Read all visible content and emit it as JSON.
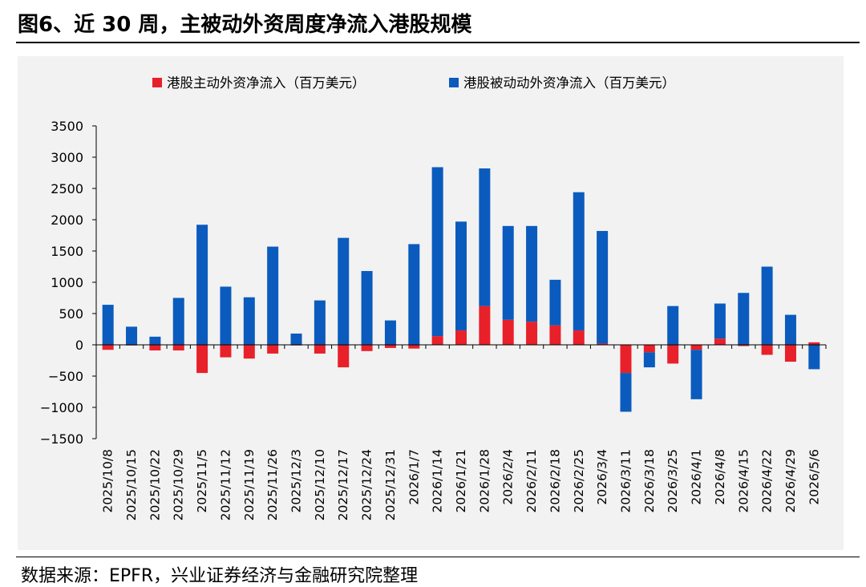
{
  "title": "图6、近 30 周，主被动外资周度净流入港股规模",
  "source": "数据来源：EPFR，兴业证券经济与金融研究院整理",
  "colors": {
    "active": "#e8202a",
    "passive": "#0a5bbd"
  },
  "chart_data": {
    "type": "bar",
    "stacked": true,
    "title": "",
    "xlabel": "",
    "ylabel": "",
    "ylim": [
      -1500,
      3500
    ],
    "yticks": [
      -1500,
      -1000,
      -500,
      0,
      500,
      1000,
      1500,
      2000,
      2500,
      3000,
      3500
    ],
    "ytick_labels": [
      "−1500",
      "−1000",
      "−500",
      "0",
      "500",
      "1000",
      "1500",
      "2000",
      "2500",
      "3000",
      "3500"
    ],
    "legend_position": "top",
    "categories": [
      "2025/10/8",
      "2025/10/15",
      "2025/10/22",
      "2025/10/29",
      "2025/11/5",
      "2025/11/12",
      "2025/11/19",
      "2025/11/26",
      "2025/12/3",
      "2025/12/10",
      "2025/12/17",
      "2025/12/24",
      "2025/12/31",
      "2026/1/7",
      "2026/1/14",
      "2026/1/21",
      "2026/1/28",
      "2026/2/4",
      "2026/2/11",
      "2026/2/18",
      "2026/2/25",
      "2026/3/4",
      "2026/3/11",
      "2026/3/18",
      "2026/3/25",
      "2026/4/1",
      "2026/4/8",
      "2026/4/15",
      "2026/4/22",
      "2026/4/29",
      "2026/5/6"
    ],
    "series": [
      {
        "name": "港股主动外资净流入（百万美元）",
        "color": "#e8202a",
        "values": [
          -80,
          -10,
          -90,
          -90,
          -450,
          -200,
          -220,
          -140,
          -10,
          -140,
          -360,
          -100,
          -50,
          -60,
          140,
          230,
          620,
          400,
          370,
          310,
          230,
          20,
          -450,
          -120,
          -300,
          -80,
          100,
          -20,
          -160,
          -270,
          40
        ]
      },
      {
        "name": "港股被动动外资净流入（百万美元）",
        "color": "#0a5bbd",
        "values": [
          640,
          290,
          130,
          750,
          1920,
          930,
          760,
          1570,
          180,
          710,
          1710,
          1180,
          390,
          1610,
          2700,
          1740,
          2200,
          1500,
          1530,
          730,
          2210,
          1800,
          -620,
          -240,
          620,
          -790,
          560,
          830,
          1250,
          480,
          -390
        ]
      }
    ]
  }
}
